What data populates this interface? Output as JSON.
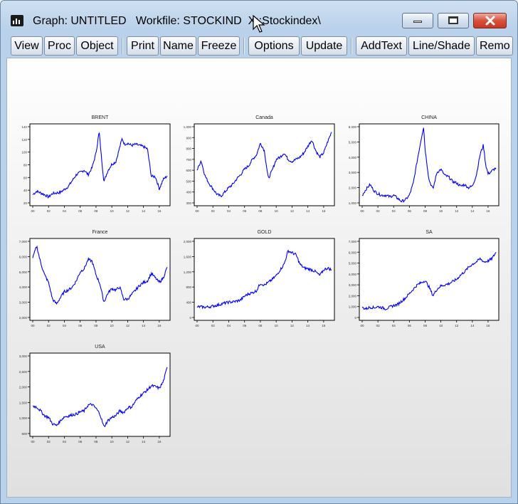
{
  "window": {
    "title": "Graph: UNTITLED   Workfile: STOCKINDEX::Stockindex\\",
    "title_shown": "Graph: UNTITLED   Workfile: STOCKIND  X::Stockindex\\",
    "icon": "graph-bars-icon",
    "controls": [
      {
        "name": "minimize-button",
        "icon": "minimize-icon"
      },
      {
        "name": "maximize-button",
        "icon": "maximize-icon"
      },
      {
        "name": "close-button",
        "icon": "close-icon"
      }
    ],
    "close_color": "#c4381f"
  },
  "toolbar": {
    "buttons": [
      {
        "id": "view",
        "label": "View"
      },
      {
        "id": "proc",
        "label": "Proc"
      },
      {
        "id": "object",
        "label": "Object"
      },
      {
        "id": "print",
        "label": "Print"
      },
      {
        "id": "name",
        "label": "Name"
      },
      {
        "id": "freeze",
        "label": "Freeze"
      },
      {
        "id": "options",
        "label": "Options"
      },
      {
        "id": "update",
        "label": "Update"
      },
      {
        "id": "addtext",
        "label": "AddText"
      },
      {
        "id": "lineshade",
        "label": "Line/Shade"
      },
      {
        "id": "remove",
        "label": "Remo"
      }
    ]
  },
  "line_color": "#0000ff",
  "chart_data": [
    {
      "type": "line",
      "title": "BRENT",
      "xlim": [
        2000,
        2017
      ],
      "xticks": [
        "00",
        "02",
        "04",
        "06",
        "08",
        "10",
        "12",
        "14",
        "16"
      ],
      "ylim": [
        10,
        140
      ],
      "yticks": [
        "140",
        "120",
        "100",
        "80",
        "60",
        "40",
        "20"
      ],
      "x": [
        2000,
        2000.5,
        2001,
        2001.5,
        2002,
        2002.5,
        2003,
        2003.5,
        2004,
        2004.5,
        2005,
        2005.5,
        2006,
        2006.5,
        2007,
        2007.5,
        2008,
        2008.4,
        2008.6,
        2009,
        2009.5,
        2010,
        2010.5,
        2011,
        2011.3,
        2011.6,
        2012,
        2012.5,
        2013,
        2013.5,
        2014,
        2014.5,
        2015,
        2015.5,
        2016,
        2016.5,
        2017
      ],
      "values": [
        24,
        30,
        27,
        24,
        20,
        26,
        27,
        28,
        33,
        38,
        48,
        58,
        62,
        66,
        58,
        70,
        95,
        132,
        100,
        46,
        65,
        76,
        80,
        105,
        120,
        110,
        112,
        108,
        110,
        108,
        106,
        102,
        55,
        55,
        34,
        50,
        56
      ]
    },
    {
      "type": "line",
      "title": "Canada",
      "xlim": [
        2000,
        2017
      ],
      "xticks": [
        "00",
        "02",
        "04",
        "06",
        "08",
        "10",
        "12",
        "14",
        "16"
      ],
      "ylim": [
        300,
        1000
      ],
      "yticks": [
        "1,000",
        "900",
        "800",
        "700",
        "600",
        "500",
        "400",
        "300"
      ],
      "x": [
        2000,
        2000.5,
        2001,
        2001.5,
        2002,
        2002.5,
        2003,
        2003.5,
        2004,
        2004.5,
        2005,
        2005.5,
        2006,
        2006.5,
        2007,
        2007.5,
        2008,
        2008.5,
        2009,
        2009.5,
        2010,
        2010.5,
        2011,
        2011.5,
        2012,
        2012.5,
        2013,
        2013.5,
        2014,
        2014.5,
        2015,
        2015.5,
        2016,
        2016.5,
        2017
      ],
      "values": [
        600,
        690,
        550,
        480,
        430,
        380,
        360,
        400,
        440,
        470,
        520,
        560,
        610,
        640,
        700,
        740,
        850,
        780,
        520,
        600,
        700,
        720,
        760,
        700,
        680,
        700,
        720,
        760,
        820,
        880,
        780,
        720,
        760,
        860,
        950
      ]
    },
    {
      "type": "line",
      "title": "CHINA",
      "xlim": [
        2000,
        2017
      ],
      "xticks": [
        "00",
        "02",
        "04",
        "06",
        "08",
        "10",
        "12",
        "14",
        "16"
      ],
      "ylim": [
        1000,
        6000
      ],
      "yticks": [
        "6,000",
        "5,000",
        "4,000",
        "3,000",
        "2,000",
        "1,000"
      ],
      "x": [
        2000,
        2000.5,
        2001,
        2001.5,
        2002,
        2002.5,
        2003,
        2003.5,
        2004,
        2004.5,
        2005,
        2005.5,
        2006,
        2006.5,
        2007,
        2007.5,
        2007.8,
        2008,
        2008.5,
        2009,
        2009.5,
        2010,
        2010.5,
        2011,
        2011.5,
        2012,
        2012.5,
        2013,
        2013.5,
        2014,
        2014.5,
        2015,
        2015.4,
        2015.7,
        2016,
        2016.5,
        2017
      ],
      "values": [
        1500,
        1900,
        2200,
        1800,
        1600,
        1500,
        1500,
        1400,
        1500,
        1300,
        1100,
        1200,
        1500,
        2300,
        3800,
        5200,
        6000,
        4500,
        2500,
        1900,
        3000,
        3200,
        2800,
        2700,
        2400,
        2300,
        2100,
        2200,
        2000,
        2100,
        2800,
        4200,
        4800,
        3500,
        2900,
        3100,
        3300
      ]
    },
    {
      "type": "line",
      "title": "France",
      "xlim": [
        2000,
        2017
      ],
      "xticks": [
        "00",
        "02",
        "04",
        "06",
        "08",
        "10",
        "12",
        "14",
        "16"
      ],
      "ylim": [
        2000,
        7000
      ],
      "yticks": [
        "7,000",
        "6,000",
        "5,000",
        "4,000",
        "3,000",
        "2,000"
      ],
      "x": [
        2000,
        2000.5,
        2001,
        2001.5,
        2002,
        2002.5,
        2003,
        2003.5,
        2004,
        2004.5,
        2005,
        2005.5,
        2006,
        2006.5,
        2007,
        2007.5,
        2008,
        2008.5,
        2009,
        2009.5,
        2010,
        2010.5,
        2011,
        2011.5,
        2012,
        2012.5,
        2013,
        2013.5,
        2014,
        2014.5,
        2015,
        2015.5,
        2016,
        2016.5,
        2017
      ],
      "values": [
        5900,
        6700,
        5600,
        4800,
        4300,
        3200,
        2900,
        3300,
        3700,
        3800,
        4000,
        4400,
        5000,
        5200,
        5800,
        5700,
        4800,
        4200,
        3000,
        3600,
        3900,
        3800,
        4000,
        3200,
        3200,
        3500,
        3800,
        4100,
        4300,
        4400,
        4900,
        4600,
        4300,
        4600,
        5300
      ]
    },
    {
      "type": "line",
      "title": "GOLD",
      "xlim": [
        2000,
        2017
      ],
      "xticks": [
        "00",
        "02",
        "04",
        "06",
        "08",
        "10",
        "12",
        "14",
        "16"
      ],
      "ylim": [
        0,
        2000
      ],
      "yticks": [
        "2,000",
        "1,600",
        "1,200",
        "800",
        "400",
        "0"
      ],
      "x": [
        2000,
        2000.5,
        2001,
        2001.5,
        2002,
        2002.5,
        2003,
        2003.5,
        2004,
        2004.5,
        2005,
        2005.5,
        2006,
        2006.5,
        2007,
        2007.5,
        2008,
        2008.5,
        2009,
        2009.5,
        2010,
        2010.5,
        2011,
        2011.5,
        2012,
        2012.5,
        2013,
        2013.5,
        2014,
        2014.5,
        2015,
        2015.5,
        2016,
        2016.5,
        2017
      ],
      "values": [
        280,
        280,
        270,
        280,
        300,
        320,
        350,
        380,
        400,
        410,
        430,
        460,
        560,
        620,
        650,
        700,
        900,
        850,
        920,
        1000,
        1100,
        1250,
        1400,
        1750,
        1700,
        1650,
        1400,
        1300,
        1280,
        1250,
        1200,
        1100,
        1250,
        1300,
        1250
      ]
    },
    {
      "type": "line",
      "title": "SA",
      "xlim": [
        2000,
        2017
      ],
      "xticks": [
        "00",
        "02",
        "04",
        "06",
        "08",
        "10",
        "12",
        "14",
        "16"
      ],
      "ylim": [
        0,
        7000
      ],
      "yticks": [
        "7,000",
        "6,000",
        "5,000",
        "4,000",
        "3,000",
        "2,000",
        "1,000",
        "0"
      ],
      "x": [
        2000,
        2000.5,
        2001,
        2001.5,
        2002,
        2002.5,
        2003,
        2003.5,
        2004,
        2004.5,
        2005,
        2005.5,
        2006,
        2006.5,
        2007,
        2007.5,
        2008,
        2008.5,
        2009,
        2009.5,
        2010,
        2010.5,
        2011,
        2011.5,
        2012,
        2012.5,
        2013,
        2013.5,
        2014,
        2014.5,
        2015,
        2015.5,
        2016,
        2016.5,
        2017
      ],
      "values": [
        900,
        800,
        950,
        900,
        1000,
        900,
        800,
        950,
        1100,
        1200,
        1500,
        1800,
        2200,
        2600,
        3000,
        3200,
        3400,
        2800,
        2000,
        2600,
        2900,
        3000,
        3100,
        3300,
        3500,
        3900,
        4200,
        4600,
        4900,
        5100,
        5400,
        5100,
        5200,
        5400,
        6000
      ]
    },
    {
      "type": "line",
      "title": "USA",
      "xlim": [
        2000,
        2017
      ],
      "xticks": [
        "00",
        "02",
        "04",
        "06",
        "08",
        "10",
        "12",
        "14",
        "16"
      ],
      "ylim": [
        600,
        3000
      ],
      "yticks": [
        "3,000",
        "2,500",
        "2,000",
        "1,500",
        "1,000",
        "600"
      ],
      "x": [
        2000,
        2000.5,
        2001,
        2001.5,
        2002,
        2002.5,
        2003,
        2003.5,
        2004,
        2004.5,
        2005,
        2005.5,
        2006,
        2006.5,
        2007,
        2007.5,
        2008,
        2008.5,
        2009,
        2009.5,
        2010,
        2010.5,
        2011,
        2011.5,
        2012,
        2012.5,
        2013,
        2013.5,
        2014,
        2014.5,
        2015,
        2015.5,
        2016,
        2016.5,
        2017
      ],
      "values": [
        1450,
        1420,
        1300,
        1150,
        1100,
        900,
        850,
        1000,
        1120,
        1140,
        1180,
        1200,
        1270,
        1300,
        1480,
        1500,
        1380,
        1200,
        800,
        1000,
        1100,
        1150,
        1300,
        1250,
        1400,
        1420,
        1600,
        1750,
        1850,
        1950,
        2080,
        2050,
        2000,
        2200,
        2650
      ]
    }
  ]
}
